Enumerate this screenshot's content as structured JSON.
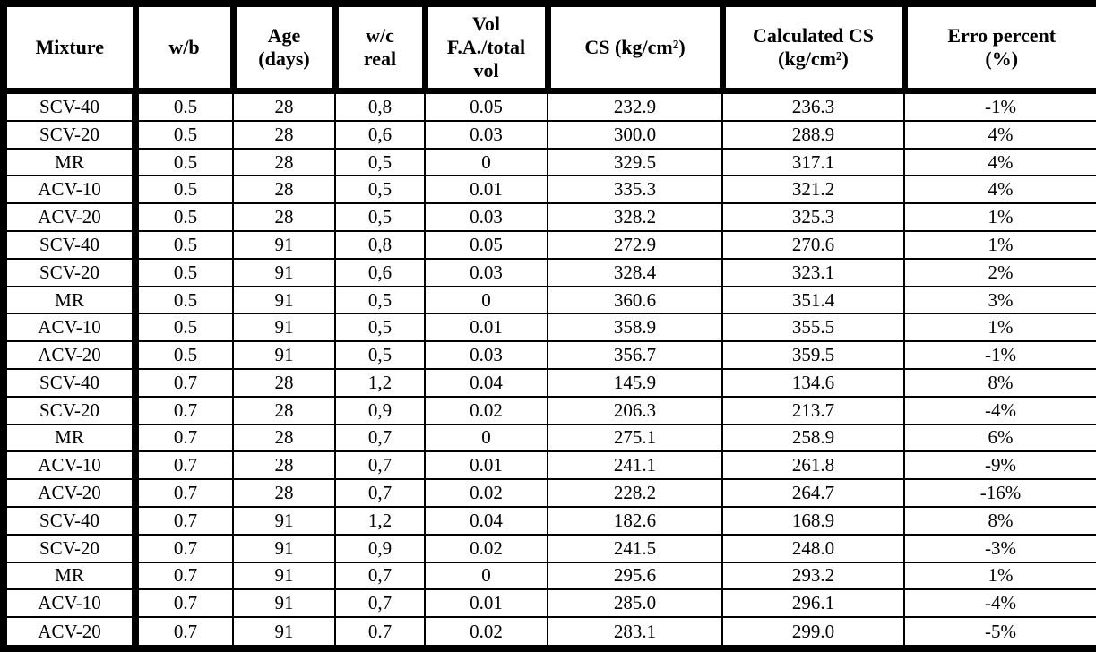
{
  "table": {
    "columns": [
      "Mixture",
      "w/b",
      "Age\n(days)",
      "w/c\nreal",
      "Vol\nF.A./total\nvol",
      "CS (kg/cm²)",
      "Calculated CS\n(kg/cm²)",
      "Erro percent\n(%)"
    ],
    "column_keys": [
      "mixture",
      "wb",
      "age-days",
      "wc-real",
      "vol-fa-total-vol",
      "cs",
      "calculated-cs",
      "erro-percent"
    ],
    "rows": [
      [
        "SCV-40",
        "0.5",
        "28",
        "0,8",
        "0.05",
        "232.9",
        "236.3",
        "-1%"
      ],
      [
        "SCV-20",
        "0.5",
        "28",
        "0,6",
        "0.03",
        "300.0",
        "288.9",
        "4%"
      ],
      [
        "MR",
        "0.5",
        "28",
        "0,5",
        "0",
        "329.5",
        "317.1",
        "4%"
      ],
      [
        "ACV-10",
        "0.5",
        "28",
        "0,5",
        "0.01",
        "335.3",
        "321.2",
        "4%"
      ],
      [
        "ACV-20",
        "0.5",
        "28",
        "0,5",
        "0.03",
        "328.2",
        "325.3",
        "1%"
      ],
      [
        "SCV-40",
        "0.5",
        "91",
        "0,8",
        "0.05",
        "272.9",
        "270.6",
        "1%"
      ],
      [
        "SCV-20",
        "0.5",
        "91",
        "0,6",
        "0.03",
        "328.4",
        "323.1",
        "2%"
      ],
      [
        "MR",
        "0.5",
        "91",
        "0,5",
        "0",
        "360.6",
        "351.4",
        "3%"
      ],
      [
        "ACV-10",
        "0.5",
        "91",
        "0,5",
        "0.01",
        "358.9",
        "355.5",
        "1%"
      ],
      [
        "ACV-20",
        "0.5",
        "91",
        "0,5",
        "0.03",
        "356.7",
        "359.5",
        "-1%"
      ],
      [
        "SCV-40",
        "0.7",
        "28",
        "1,2",
        "0.04",
        "145.9",
        "134.6",
        "8%"
      ],
      [
        "SCV-20",
        "0.7",
        "28",
        "0,9",
        "0.02",
        "206.3",
        "213.7",
        "-4%"
      ],
      [
        "MR",
        "0.7",
        "28",
        "0,7",
        "0",
        "275.1",
        "258.9",
        "6%"
      ],
      [
        "ACV-10",
        "0.7",
        "28",
        "0,7",
        "0.01",
        "241.1",
        "261.8",
        "-9%"
      ],
      [
        "ACV-20",
        "0.7",
        "28",
        "0,7",
        "0.02",
        "228.2",
        "264.7",
        "-16%"
      ],
      [
        "SCV-40",
        "0.7",
        "91",
        "1,2",
        "0.04",
        "182.6",
        "168.9",
        "8%"
      ],
      [
        "SCV-20",
        "0.7",
        "91",
        "0,9",
        "0.02",
        "241.5",
        "248.0",
        "-3%"
      ],
      [
        "MR",
        "0.7",
        "91",
        "0,7",
        "0",
        "295.6",
        "293.2",
        "1%"
      ],
      [
        "ACV-10",
        "0.7",
        "91",
        "0,7",
        "0.01",
        "285.0",
        "296.1",
        "-4%"
      ],
      [
        "ACV-20",
        "0.7",
        "91",
        "0.7",
        "0.02",
        "283.1",
        "299.0",
        "-5%"
      ]
    ]
  }
}
